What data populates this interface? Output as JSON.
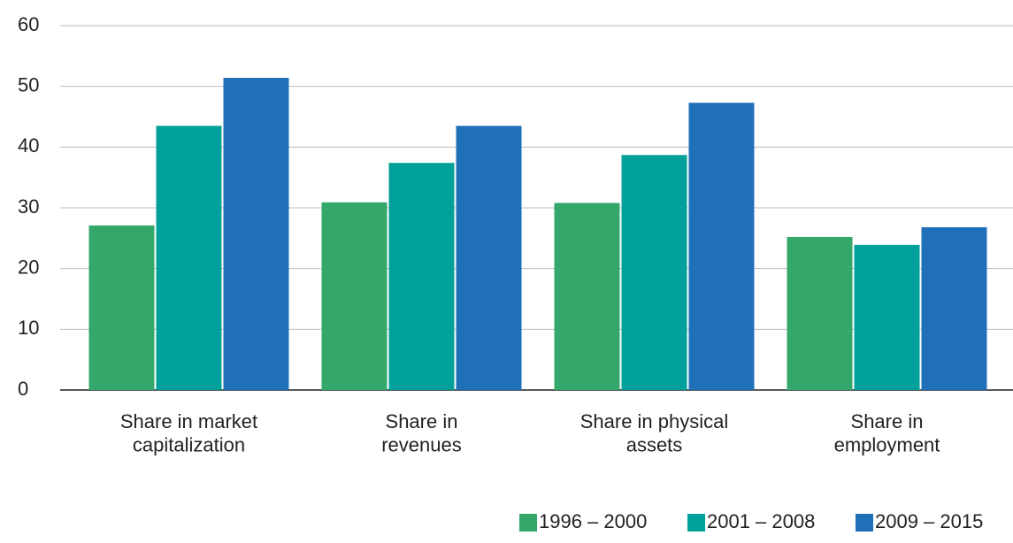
{
  "chart_data": {
    "type": "bar",
    "categories": [
      "Share in market\ncapitalization",
      "Share in\nrevenues",
      "Share in physical\nassets",
      "Share in\nemployment"
    ],
    "series": [
      {
        "name": "1996 – 2000",
        "color": "#34a86a",
        "values": [
          27.1,
          30.9,
          30.8,
          25.2
        ]
      },
      {
        "name": "2001 – 2008",
        "color": "#00a19a",
        "values": [
          43.5,
          37.4,
          38.7,
          23.9
        ]
      },
      {
        "name": "2009 – 2015",
        "color": "#1f6fb9",
        "values": [
          51.4,
          43.5,
          47.3,
          26.8
        ]
      }
    ],
    "ylim": [
      0,
      60
    ],
    "yticks": [
      0,
      10,
      20,
      30,
      40,
      50,
      60
    ],
    "grid": true,
    "legend": "bottom-right"
  }
}
